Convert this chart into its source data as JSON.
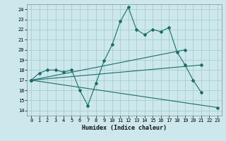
{
  "xlabel": "Humidex (Indice chaleur)",
  "background_color": "#cce8ec",
  "grid_color": "#aacccc",
  "line_color": "#1a6e6a",
  "xlim": [
    -0.5,
    23.5
  ],
  "ylim": [
    13.5,
    24.5
  ],
  "xticks": [
    0,
    1,
    2,
    3,
    4,
    5,
    6,
    7,
    8,
    9,
    10,
    11,
    12,
    13,
    14,
    15,
    16,
    17,
    18,
    19,
    20,
    21,
    22,
    23
  ],
  "yticks": [
    14,
    15,
    16,
    17,
    18,
    19,
    20,
    21,
    22,
    23,
    24
  ],
  "series_main": {
    "x": [
      0,
      1,
      2,
      3,
      4,
      5,
      6,
      7,
      8,
      9,
      10,
      11,
      12,
      13,
      14,
      15,
      16,
      17,
      18,
      19,
      20,
      21
    ],
    "y": [
      17.0,
      17.7,
      18.0,
      18.0,
      17.8,
      18.0,
      16.0,
      14.5,
      16.7,
      18.9,
      20.5,
      22.8,
      24.2,
      22.0,
      21.5,
      22.0,
      21.8,
      22.2,
      19.8,
      18.5,
      17.0,
      15.8
    ]
  },
  "series_lines": [
    {
      "x": [
        0,
        19
      ],
      "y": [
        17.0,
        20.0
      ]
    },
    {
      "x": [
        0,
        21
      ],
      "y": [
        17.0,
        18.5
      ]
    },
    {
      "x": [
        0,
        23
      ],
      "y": [
        17.0,
        14.3
      ]
    }
  ],
  "tick_fontsize": 5.0,
  "xlabel_fontsize": 6.0,
  "marker_size": 2.0,
  "linewidth": 0.8
}
